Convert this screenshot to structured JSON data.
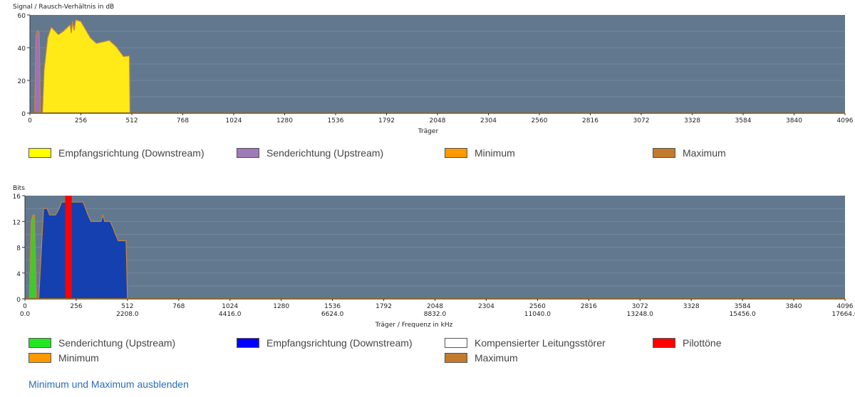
{
  "chart_data": [
    {
      "type": "area",
      "ylabel": "Signal / Rausch-Verhältnis in dB",
      "xlabel": "Träger",
      "xlim": [
        0,
        4096
      ],
      "ylim": [
        0,
        60
      ],
      "yticks": [
        0,
        20,
        40,
        60
      ],
      "xticks": [
        0,
        256,
        512,
        768,
        1024,
        1280,
        1536,
        1792,
        2048,
        2304,
        2560,
        2816,
        3072,
        3328,
        3584,
        3840,
        4096
      ],
      "grid": true,
      "series": [
        {
          "name": "Empfangsrichtung (Downstream)",
          "color": "#ffea17",
          "x": [
            63,
            71,
            89,
            107,
            143,
            167,
            202,
            208,
            214,
            222,
            230,
            256,
            304,
            334,
            358,
            399,
            435,
            470,
            500,
            503
          ],
          "y": [
            0,
            26,
            46,
            52.5,
            48,
            50,
            54,
            49,
            56,
            50.5,
            57,
            56,
            46,
            42.6,
            43.3,
            44.5,
            40.4,
            34.6,
            35,
            0
          ]
        },
        {
          "name": "Senderichtung (Upstream)",
          "color": "#a070b8",
          "x": [
            24,
            30,
            39,
            47,
            53
          ],
          "y": [
            0,
            47.7,
            50.6,
            49,
            0
          ]
        }
      ],
      "legend": [
        {
          "label": "Empfangsrichtung (Downstream)",
          "color": "#ffff00"
        },
        {
          "label": "Senderichtung (Upstream)",
          "color": "#9f79b8"
        },
        {
          "label": "Minimum",
          "color": "#ff9900"
        },
        {
          "label": "Maximum",
          "color": "#c47a2c"
        }
      ]
    },
    {
      "type": "area",
      "ylabel": "Bits",
      "xlabel": "Träger / Frequenz in kHz",
      "xlim": [
        0,
        4096
      ],
      "ylim": [
        0,
        16
      ],
      "yticks": [
        0,
        4,
        8,
        12,
        16
      ],
      "xticks": [
        0,
        256,
        512,
        768,
        1024,
        1280,
        1536,
        1792,
        2048,
        2304,
        2560,
        2816,
        3072,
        3328,
        3584,
        3840,
        4096
      ],
      "freq_ticks": [
        "0.0",
        "2208.0",
        "4416.0",
        "6624.0",
        "8832.0",
        "11040.0",
        "13248.0",
        "15456.0",
        "17664.0"
      ],
      "grid": true,
      "series": [
        {
          "name": "Senderichtung (Upstream)",
          "color": "#3ccc2a",
          "x": [
            22,
            31,
            40,
            48,
            57
          ],
          "y": [
            0,
            12,
            13,
            13,
            0
          ]
        },
        {
          "name": "Empfangsrichtung (Downstream)",
          "color": "#1440b0",
          "x": [
            69,
            93,
            111,
            123,
            153,
            171,
            183,
            290,
            303,
            315,
            330,
            380,
            389,
            398,
            426,
            440,
            452,
            466,
            505,
            512
          ],
          "y": [
            0,
            14,
            14,
            13,
            13,
            14,
            15,
            15,
            14,
            13,
            12,
            12,
            13,
            12,
            12,
            11,
            10,
            9,
            9,
            0
          ]
        },
        {
          "name": "Pilottöne",
          "color": "#ff0000",
          "x": [
            201,
            201,
            234,
            234
          ],
          "y": [
            0,
            16,
            16,
            0
          ]
        }
      ],
      "legend": [
        {
          "label": "Senderichtung (Upstream)",
          "color": "#22e622"
        },
        {
          "label": "Empfangsrichtung (Downstream)",
          "color": "#0000ff"
        },
        {
          "label": "Kompensierter Leitungsstörer",
          "color": "#ffffff"
        },
        {
          "label": "Pilottöne",
          "color": "#ff0000"
        },
        {
          "label": "Minimum",
          "color": "#ff9900"
        },
        {
          "label": "Maximum",
          "color": "#c47a2c"
        }
      ]
    }
  ],
  "toggle_link": "Minimum und Maximum ausblenden"
}
